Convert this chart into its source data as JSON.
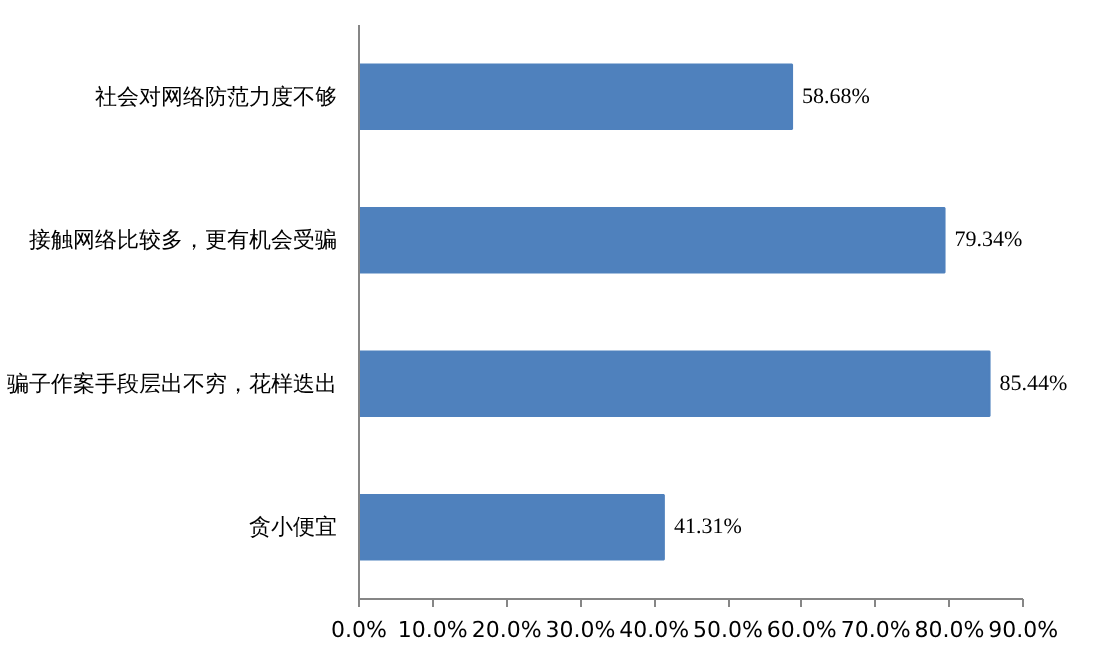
{
  "chart_data": {
    "type": "bar",
    "orientation": "horizontal",
    "categories": [
      "社会对网络防范力度不够",
      "接触网络比较多，更有机会受骗",
      "骗子作案手段层出不穷，花样迭出",
      "贪小便宜"
    ],
    "values": [
      58.68,
      79.34,
      85.44,
      41.31
    ],
    "value_labels": [
      "58.68%",
      "79.34%",
      "85.44%",
      "41.31%"
    ],
    "color": "#4f81bd",
    "xlim": [
      0,
      90
    ],
    "xticks": [
      {
        "value": 0,
        "label": "0.0%"
      },
      {
        "value": 10,
        "label": "10.0%"
      },
      {
        "value": 20,
        "label": "20.0%"
      },
      {
        "value": 30,
        "label": "30.0%"
      },
      {
        "value": 40,
        "label": "40.0%"
      },
      {
        "value": 50,
        "label": "50.0%"
      },
      {
        "value": 60,
        "label": "60.0%"
      },
      {
        "value": 70,
        "label": "70.0%"
      },
      {
        "value": 80,
        "label": "80.0%"
      },
      {
        "value": 90,
        "label": "90.0%"
      }
    ],
    "grid": false
  }
}
